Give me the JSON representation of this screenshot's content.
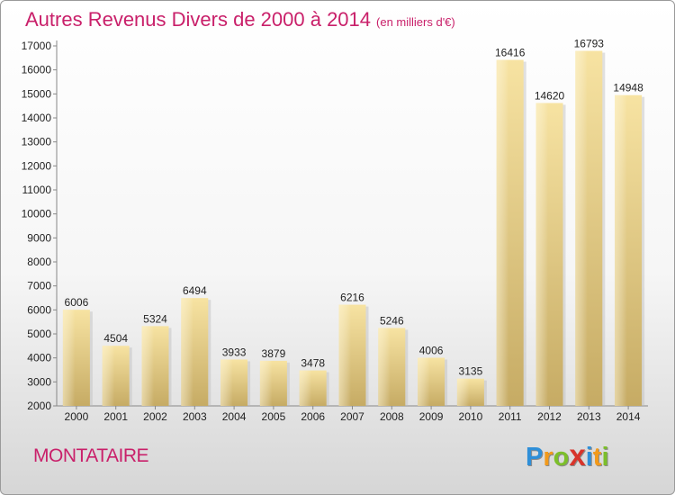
{
  "chart_data": {
    "type": "bar",
    "title": "Autres Revenus Divers de 2000 à 2014",
    "unit": "(en milliers d'€)",
    "categories": [
      "2000",
      "2001",
      "2002",
      "2003",
      "2004",
      "2005",
      "2006",
      "2007",
      "2008",
      "2009",
      "2010",
      "2011",
      "2012",
      "2013",
      "2014"
    ],
    "values": [
      6006,
      4504,
      5324,
      6494,
      3933,
      3879,
      3478,
      6216,
      5246,
      4006,
      3135,
      16416,
      14620,
      16793,
      14948
    ],
    "ylim": [
      2000,
      17000
    ],
    "yticks": [
      2000,
      3000,
      4000,
      5000,
      6000,
      7000,
      8000,
      9000,
      10000,
      11000,
      12000,
      13000,
      14000,
      15000,
      16000,
      17000
    ],
    "grid": false,
    "bar_color": "#e9cf85"
  },
  "footer": {
    "city": "MONTATAIRE",
    "logo_letters": [
      "P",
      "r",
      "o",
      "x",
      "i",
      "t",
      "i"
    ],
    "logo_colors": [
      "#2f8fd8",
      "#f29a1b",
      "#7cbf2a",
      "#d8342a",
      "#2f8fd8",
      "#f29a1b",
      "#7cbf2a"
    ]
  }
}
